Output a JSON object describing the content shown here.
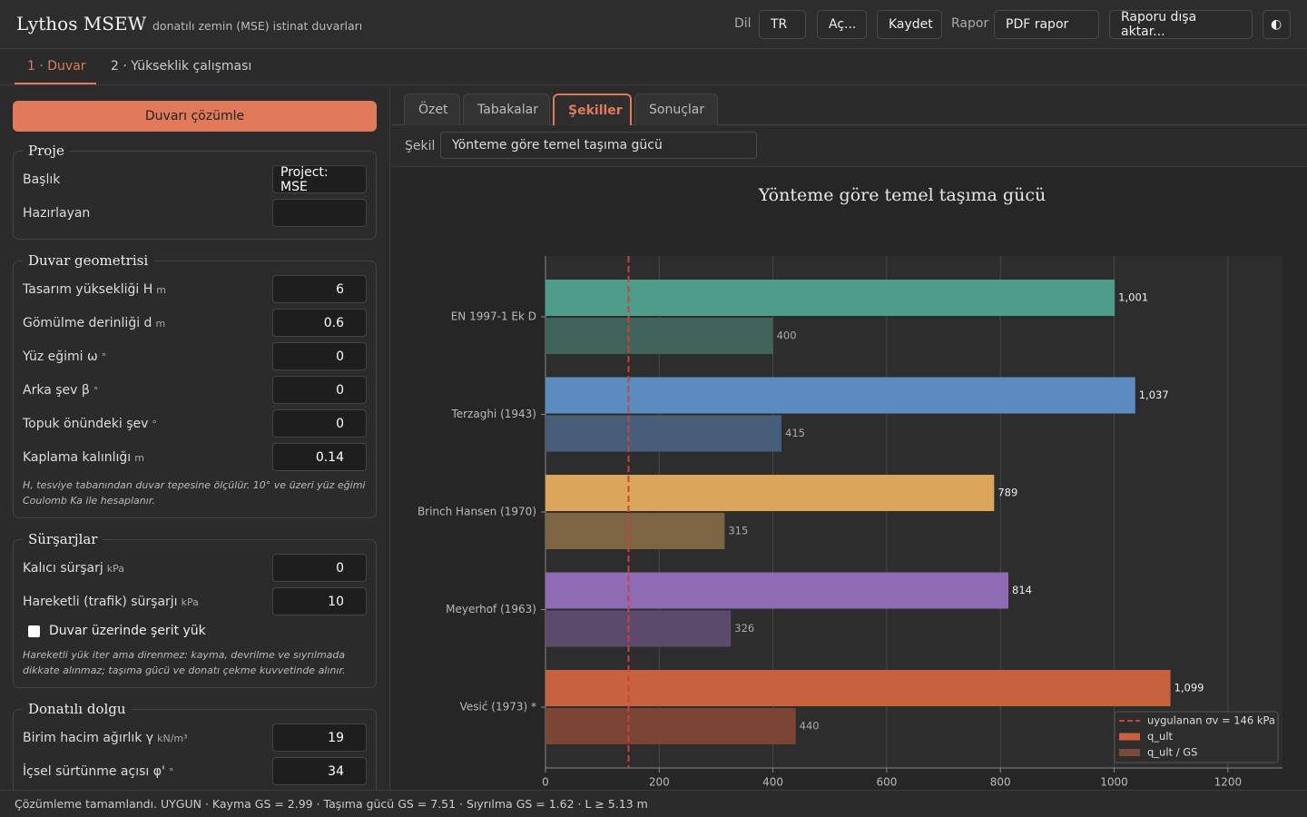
{
  "app": {
    "title": "Lythos MSEW",
    "subtitle": "donatılı zemin (MSE) istinat duvarları",
    "lang_label": "Dil",
    "lang": "TR",
    "open": "Aç...",
    "save": "Kaydet",
    "report_label": "Rapor",
    "report": "PDF rapor",
    "export": "Raporu dışa aktar...",
    "theme": "◐"
  },
  "tabs": [
    "1 · Duvar",
    "2 · Yükseklik çalışması"
  ],
  "sidebar": {
    "solve": "Duvarı çözümle",
    "sections": [
      {
        "title": "Proje",
        "fields": [
          {
            "label": "Başlık",
            "value": "Project: MSE",
            "kind": "text"
          },
          {
            "label": "Hazırlayan",
            "kind": "text"
          }
        ]
      },
      {
        "title": "Duvar geometrisi",
        "fields": [
          {
            "label": "Tasarım yüksekliği H",
            "unit": "m",
            "value": 6
          },
          {
            "label": "Gömülme derinliği d",
            "unit": "m",
            "value": 0.6
          },
          {
            "label": "Yüz eğimi ω",
            "unit": "°",
            "value": 0
          },
          {
            "label": "Arka şev β",
            "unit": "°",
            "value": 0
          },
          {
            "label": "Topuk önündeki şev",
            "unit": "°",
            "value": 0
          },
          {
            "label": "Kaplama kalınlığı",
            "unit": "m",
            "value": 0.14
          }
        ],
        "note": "H, tesviye tabanından duvar tepesine ölçülür. 10° ve üzeri yüz eğimi Coulomb Ka ile hesaplanır."
      },
      {
        "title": "Sürşarjlar",
        "fields": [
          {
            "label": "Kalıcı sürşarj",
            "unit": "kPa",
            "value": 0
          },
          {
            "label": "Hareketli (trafik) sürşarjı",
            "unit": "kPa",
            "value": 10
          }
        ],
        "checkbox": "Duvar üzerinde şerit yük",
        "note": "Hareketli yük iter ama direnmez: kayma, devrilme ve sıyrılmada dikkate alınmaz; taşıma gücü ve donatı çekme kuvvetinde alınır."
      },
      {
        "title": "Donatılı dolgu",
        "fields": [
          {
            "label": "Birim hacim ağırlık γ",
            "unit": "kN/m³",
            "value": 19
          },
          {
            "label": "İçsel sürtünme açısı φ'",
            "unit": "°",
            "value": 34
          }
        ]
      }
    ]
  },
  "subtabs": [
    "Özet",
    "Tabakalar",
    "Şekiller",
    "Sonuçlar"
  ],
  "figure_label": "Şekil",
  "figure_select": "Yönteme göre temel taşıma gücü",
  "chart_data": {
    "type": "hbar",
    "title": "Yönteme göre temel taşıma gücü",
    "categories": [
      "EN 1997-1 Ek D",
      "Terzaghi (1943)",
      "Brinch Hansen (1970)",
      "Meyerhof (1963)",
      "Vesić (1973) *"
    ],
    "series": [
      {
        "name": "q_ult",
        "color": "#c8613e",
        "colors": [
          "#4e9c8a",
          "#5b8cbf",
          "#dba65a",
          "#8e6bb3",
          "#c8613e"
        ],
        "values": [
          1001,
          1037,
          789,
          814,
          1099
        ],
        "value_labels": [
          "1,001",
          "1,037",
          "789",
          "814",
          "1,099"
        ]
      },
      {
        "name": "q_ult / GS",
        "color": "#7a4a3a",
        "colors": [
          "#3f6359",
          "#465e7a",
          "#7d6443",
          "#5b4a6c",
          "#7a4535"
        ],
        "values": [
          400,
          415,
          315,
          326,
          440
        ]
      }
    ],
    "reference_lines": [
      {
        "value": 146,
        "label": "uygulanan σv = 146 kPa",
        "color": "#d04040"
      }
    ],
    "xlim": [
      0,
      1296
    ],
    "xticks": [
      0,
      200,
      400,
      600,
      800,
      1000,
      1200
    ],
    "grid": true,
    "legend": "lower right"
  },
  "status": "Çözümleme tamamlandı. UYGUN · Kayma GS = 2.99 · Taşıma gücü GS = 7.51 · Sıyrılma GS = 1.62 · L ≥ 5.13 m"
}
